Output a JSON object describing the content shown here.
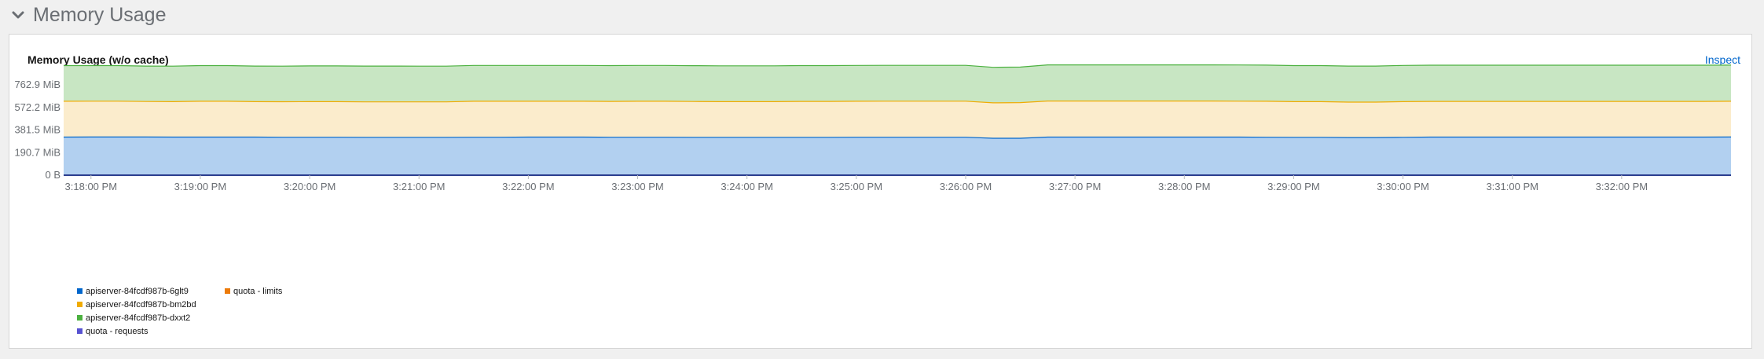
{
  "section": {
    "title": "Memory Usage",
    "icon": "chevron-down-icon"
  },
  "card": {
    "title": "Memory Usage (w/o cache)",
    "inspect_label": "Inspect"
  },
  "chart_data": {
    "type": "area",
    "stacked": true,
    "title": "Memory Usage (w/o cache)",
    "y_tick_labels": [
      "0 B",
      "190.7 MiB",
      "381.5 MiB",
      "572.2 MiB",
      "762.9 MiB"
    ],
    "y_tick_values": [
      0,
      190.7,
      381.5,
      572.2,
      762.9
    ],
    "y_unit": "MiB",
    "ylim": [
      0,
      950
    ],
    "x_tick_labels": [
      "3:18:00 PM",
      "3:19:00 PM",
      "3:20:00 PM",
      "3:21:00 PM",
      "3:22:00 PM",
      "3:23:00 PM",
      "3:24:00 PM",
      "3:25:00 PM",
      "3:26:00 PM",
      "3:27:00 PM",
      "3:28:00 PM",
      "3:29:00 PM",
      "3:30:00 PM",
      "3:31:00 PM",
      "3:32:00 PM"
    ],
    "x_tick_minutes": [
      0,
      1,
      2,
      3,
      4,
      5,
      6,
      7,
      8,
      9,
      10,
      11,
      12,
      13,
      14
    ],
    "x_minutes": [
      -0.25,
      0.0,
      0.25,
      0.5,
      0.75,
      1.0,
      1.25,
      1.5,
      1.75,
      2.0,
      2.25,
      2.5,
      2.75,
      3.0,
      3.25,
      3.5,
      3.75,
      4.0,
      4.25,
      4.5,
      4.75,
      5.0,
      5.25,
      5.5,
      5.75,
      6.0,
      6.25,
      6.5,
      6.75,
      7.0,
      7.25,
      7.5,
      7.75,
      8.0,
      8.25,
      8.5,
      8.75,
      9.0,
      9.25,
      9.5,
      9.75,
      10.0,
      10.25,
      10.5,
      10.75,
      11.0,
      11.25,
      11.5,
      11.75,
      12.0,
      12.25,
      12.5,
      12.75,
      13.0,
      13.25,
      13.5,
      13.75,
      14.0,
      14.25,
      14.5,
      14.75,
      15.0
    ],
    "grid": true,
    "legend_position": "bottom-left",
    "series": [
      {
        "name": "apiserver-84fcdf987b-6glt9",
        "color": "#0066cc",
        "fill": "#b2d0f0",
        "values": [
          322,
          323,
          323,
          323,
          322,
          322,
          322,
          322,
          321,
          321,
          321,
          320,
          320,
          320,
          320,
          321,
          321,
          322,
          322,
          322,
          321,
          321,
          321,
          320,
          320,
          320,
          320,
          320,
          320,
          321,
          321,
          321,
          321,
          321,
          312,
          312,
          322,
          322,
          322,
          322,
          322,
          322,
          322,
          322,
          321,
          320,
          320,
          318,
          318,
          320,
          322,
          322,
          322,
          322,
          322,
          322,
          322,
          322,
          322,
          322,
          322,
          323
        ]
      },
      {
        "name": "apiserver-84fcdf987b-bm2bd",
        "color": "#f0ab00",
        "fill": "#fbeccc",
        "values": [
          303,
          303,
          303,
          300,
          300,
          303,
          303,
          300,
          300,
          301,
          301,
          300,
          300,
          300,
          300,
          304,
          304,
          303,
          303,
          303,
          303,
          304,
          304,
          303,
          302,
          302,
          302,
          304,
          304,
          304,
          305,
          305,
          305,
          305,
          300,
          302,
          305,
          305,
          305,
          305,
          305,
          305,
          305,
          304,
          304,
          302,
          302,
          300,
          300,
          302,
          302,
          302,
          302,
          302,
          302,
          302,
          302,
          302,
          302,
          302,
          302,
          302
        ]
      },
      {
        "name": "apiserver-84fcdf987b-dxxt2",
        "color": "#4cb140",
        "fill": "#c8e6c3",
        "values": [
          302,
          301,
          301,
          300,
          300,
          302,
          302,
          301,
          301,
          302,
          302,
          303,
          303,
          302,
          302,
          303,
          303,
          303,
          303,
          303,
          303,
          303,
          303,
          303,
          303,
          303,
          303,
          303,
          303,
          303,
          303,
          303,
          303,
          303,
          300,
          300,
          306,
          306,
          306,
          306,
          306,
          306,
          306,
          306,
          306,
          305,
          305,
          305,
          305,
          306,
          306,
          306,
          306,
          306,
          306,
          306,
          306,
          306,
          306,
          306,
          306,
          306
        ]
      },
      {
        "name": "quota - requests",
        "color": "#5752d1",
        "values": []
      },
      {
        "name": "quota - limits",
        "color": "#ec7a08",
        "values": []
      }
    ]
  }
}
